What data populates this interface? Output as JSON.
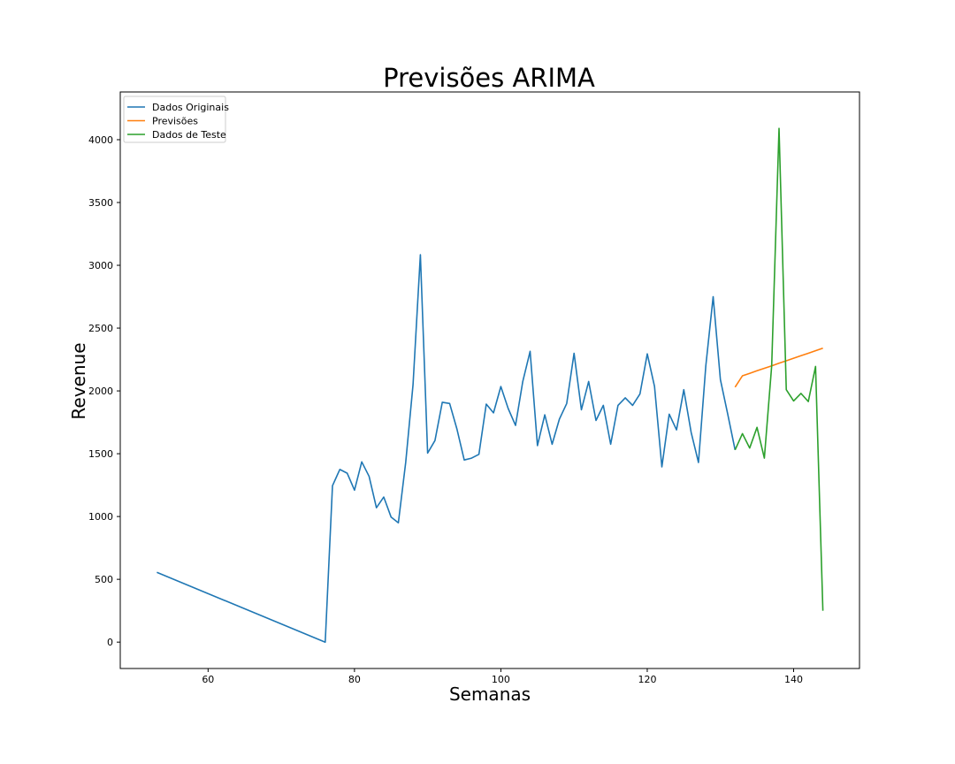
{
  "chart_data": {
    "type": "line",
    "title": "Previsões ARIMA",
    "xlabel": "Semanas",
    "ylabel": "Revenue",
    "xlim": [
      48,
      149
    ],
    "ylim": [
      -210,
      4380
    ],
    "xticks": [
      60,
      80,
      100,
      120,
      140
    ],
    "yticks": [
      0,
      500,
      1000,
      1500,
      2000,
      2500,
      3000,
      3500,
      4000
    ],
    "grid": false,
    "legend_position": "top-left",
    "series": [
      {
        "name": "Dados Originais",
        "color": "#1f77b4",
        "x": [
          53,
          76,
          77,
          78,
          79,
          80,
          81,
          82,
          83,
          84,
          85,
          86,
          87,
          88,
          89,
          90,
          91,
          92,
          93,
          94,
          95,
          96,
          97,
          98,
          99,
          100,
          101,
          102,
          103,
          104,
          105,
          106,
          107,
          108,
          109,
          110,
          111,
          112,
          113,
          114,
          115,
          116,
          117,
          118,
          119,
          120,
          121,
          122,
          123,
          124,
          125,
          126,
          127,
          128,
          129,
          130,
          131,
          132
        ],
        "y": [
          555,
          0,
          1245,
          1375,
          1345,
          1210,
          1435,
          1320,
          1070,
          1155,
          995,
          950,
          1430,
          2050,
          3085,
          1505,
          1605,
          1910,
          1900,
          1695,
          1450,
          1465,
          1495,
          1895,
          1825,
          2035,
          1860,
          1725,
          2075,
          2315,
          1565,
          1810,
          1575,
          1775,
          1900,
          2300,
          1850,
          2075,
          1765,
          1885,
          1575,
          1885,
          1945,
          1885,
          1975,
          2295,
          2035,
          1395,
          1815,
          1690,
          2010,
          1670,
          1430,
          2200,
          2750,
          2090,
          1815,
          1530
        ]
      },
      {
        "name": "Previsões",
        "color": "#ff7f0e",
        "x": [
          132,
          133,
          134,
          135,
          136,
          137,
          138,
          139,
          140,
          141,
          142,
          143,
          144
        ],
        "y": [
          2030,
          2120,
          2140,
          2160,
          2180,
          2200,
          2220,
          2240,
          2260,
          2280,
          2300,
          2320,
          2340
        ]
      },
      {
        "name": "Dados de Teste",
        "color": "#2ca02c",
        "x": [
          132,
          133,
          134,
          135,
          136,
          137,
          138,
          139,
          140,
          141,
          142,
          143,
          144
        ],
        "y": [
          1530,
          1660,
          1545,
          1710,
          1465,
          2200,
          4090,
          2010,
          1920,
          1980,
          1915,
          2195,
          250
        ]
      }
    ]
  }
}
